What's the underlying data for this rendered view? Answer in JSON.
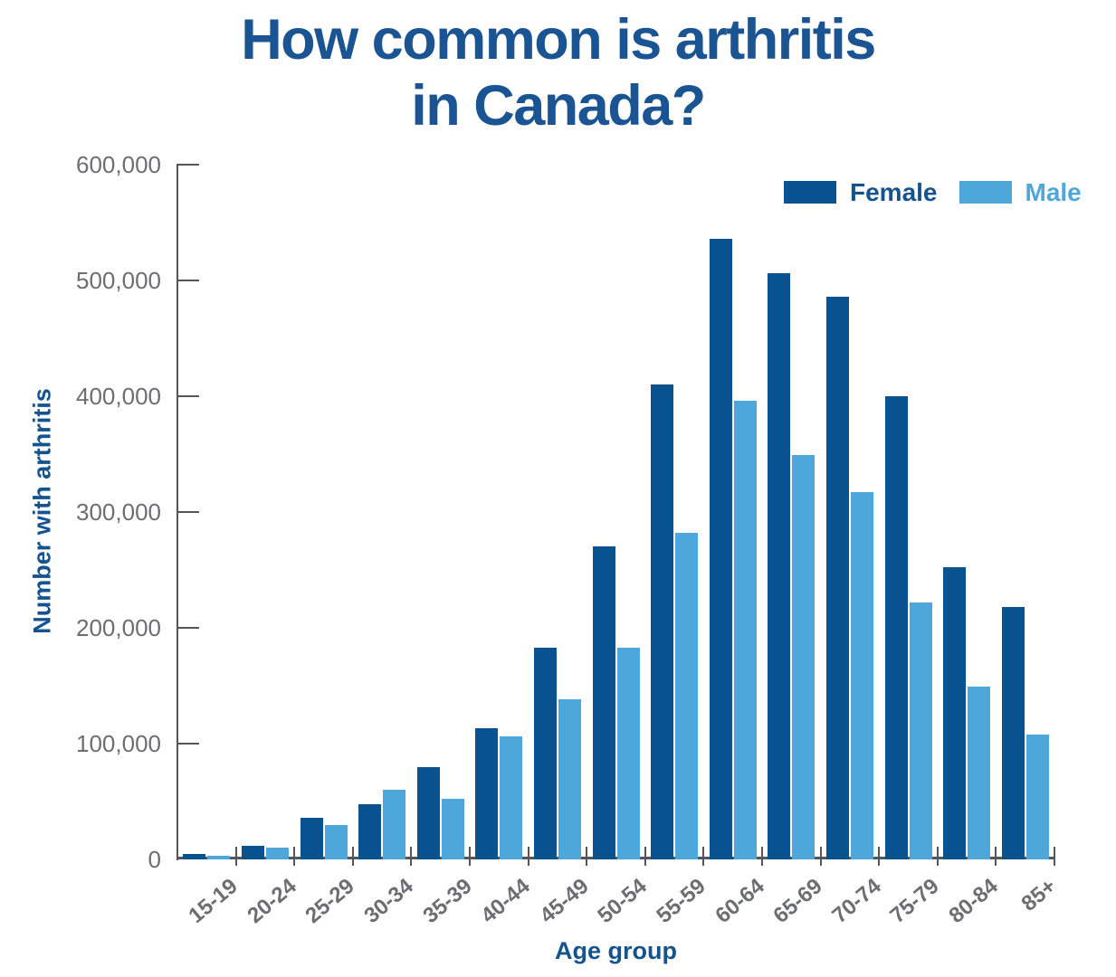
{
  "title_line1": "How common is arthritis",
  "title_line2": "in Canada?",
  "chart_data": {
    "type": "bar",
    "title": "How common is arthritis in Canada?",
    "xlabel": "Age group",
    "ylabel": "Number with arthritis",
    "ylim": [
      0,
      600000
    ],
    "grid": false,
    "legend_position": "top-right",
    "yticks": [
      {
        "v": 0,
        "label": "0"
      },
      {
        "v": 100000,
        "label": "100,000"
      },
      {
        "v": 200000,
        "label": "200,000"
      },
      {
        "v": 300000,
        "label": "300,000"
      },
      {
        "v": 400000,
        "label": "400,000"
      },
      {
        "v": 500000,
        "label": "500,000"
      },
      {
        "v": 600000,
        "label": "600,000"
      }
    ],
    "categories": [
      "15-19",
      "20-24",
      "25-29",
      "30-34",
      "35-39",
      "40-44",
      "45-49",
      "50-54",
      "55-59",
      "60-64",
      "65-69",
      "70-74",
      "75-79",
      "80-84",
      "85+"
    ],
    "series": [
      {
        "name": "Female",
        "color": "#07528f",
        "values": [
          5000,
          12000,
          36000,
          48000,
          80000,
          113000,
          183000,
          270000,
          410000,
          536000,
          506000,
          486000,
          400000,
          252000,
          218000
        ]
      },
      {
        "name": "Male",
        "color": "#4da7db",
        "values": [
          3000,
          10000,
          30000,
          60000,
          52000,
          106000,
          138000,
          183000,
          282000,
          396000,
          349000,
          317000,
          222000,
          149000,
          108000
        ]
      }
    ]
  }
}
